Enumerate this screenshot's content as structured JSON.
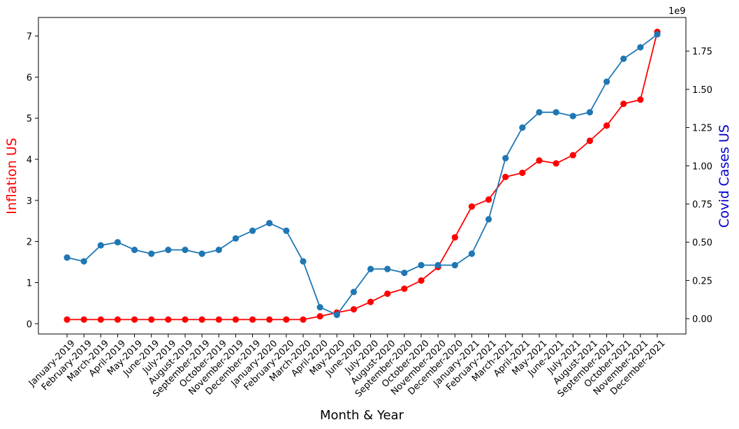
{
  "chart_data": {
    "type": "line",
    "xlabel": "Month & Year",
    "ylabel_left": "Inflation US",
    "ylabel_right": "Covid Cases US",
    "right_axis_multiplier": "1e9",
    "grid": false,
    "categories": [
      "January-2019",
      "February-2019",
      "March-2019",
      "April-2019",
      "May-2019",
      "June-2019",
      "July-2019",
      "August-2019",
      "September-2019",
      "October-2019",
      "November-2019",
      "December-2019",
      "January-2020",
      "February-2020",
      "March-2020",
      "April-2020",
      "May-2020",
      "June-2020",
      "July-2020",
      "August-2020",
      "September-2020",
      "October-2020",
      "November-2020",
      "December-2020",
      "January-2021",
      "February-2021",
      "March-2021",
      "April-2021",
      "May-2021",
      "June-2021",
      "July-2021",
      "August-2021",
      "September-2021",
      "October-2021",
      "November-2021",
      "December-2021"
    ],
    "left_axis": {
      "ylim": [
        -0.25,
        7.45
      ],
      "ticks": [
        0,
        1,
        2,
        3,
        4,
        5,
        6,
        7
      ],
      "tick_labels": [
        "0",
        "1",
        "2",
        "3",
        "4",
        "5",
        "6",
        "7"
      ]
    },
    "right_axis": {
      "ylim": [
        -0.1,
        1.97
      ],
      "ticks": [
        0,
        0.25,
        0.5,
        0.75,
        1.0,
        1.25,
        1.5,
        1.75
      ],
      "tick_labels": [
        "0.00",
        "0.25",
        "0.50",
        "0.75",
        "1.00",
        "1.25",
        "1.50",
        "1.75"
      ]
    },
    "series": [
      {
        "axis": "left",
        "color": "#ff0000",
        "values": [
          0.1,
          0.1,
          0.1,
          0.1,
          0.1,
          0.1,
          0.1,
          0.1,
          0.1,
          0.1,
          0.1,
          0.1,
          0.1,
          0.1,
          0.1,
          0.18,
          0.27,
          0.35,
          0.53,
          0.73,
          0.85,
          1.05,
          1.38,
          2.1,
          2.85,
          3.02,
          3.57,
          3.67,
          3.97,
          3.9,
          4.1,
          4.45,
          4.82,
          5.35,
          5.45,
          7.1
        ]
      },
      {
        "axis": "right",
        "color": "#1f77b4",
        "values": [
          0.4,
          0.375,
          0.48,
          0.5,
          0.45,
          0.425,
          0.45,
          0.45,
          0.425,
          0.45,
          0.525,
          0.575,
          0.625,
          0.575,
          0.375,
          0.075,
          0.025,
          0.175,
          0.325,
          0.325,
          0.3,
          0.35,
          0.35,
          0.35,
          0.425,
          0.65,
          1.05,
          1.25,
          1.35,
          1.35,
          1.325,
          1.35,
          1.55,
          1.7,
          1.775,
          1.86
        ]
      }
    ]
  },
  "colors": {
    "left_axis_label": "#ff0000",
    "right_axis_label": "#0000cc"
  }
}
